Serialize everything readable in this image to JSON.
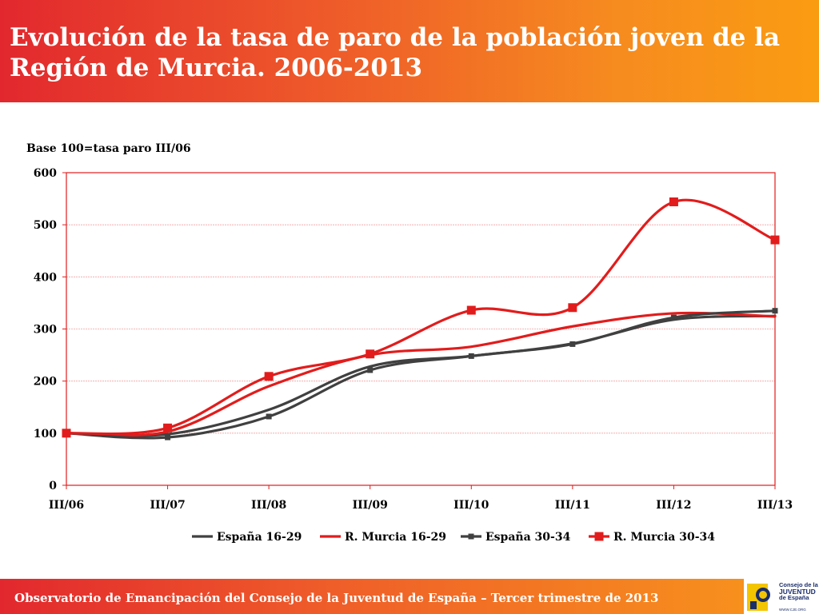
{
  "header": {
    "title": "Evolución de la tasa de paro de la población joven de la Región de Murcia. 2006-2013"
  },
  "footer": {
    "text": "Observatorio de Emancipación del Consejo de la Juventud de España – Tercer trimestre de 2013",
    "logo_line1": "Consejo de la",
    "logo_line2": "JUVENTUD",
    "logo_line3": "de España",
    "logo_url": "WWW.CJE.ORG"
  },
  "colors": {
    "spain": "#404040",
    "murcia": "#e21c1c",
    "grid": "#f2a0a0",
    "frame": "#e21c1c"
  },
  "chart_data": {
    "type": "line",
    "title": "Evolución de la tasa de paro de la población joven de la Región de Murcia. 2006-2013",
    "ylabel": "Base 100=tasa paro III/06",
    "xlabel": "",
    "categories": [
      "III/06",
      "III/07",
      "III/08",
      "III/09",
      "III/10",
      "III/11",
      "III/12",
      "III/13"
    ],
    "ylim": [
      0,
      600
    ],
    "yticks": [
      0,
      100,
      200,
      300,
      400,
      500,
      600
    ],
    "grid": true,
    "legend_position": "bottom",
    "series": [
      {
        "name": "España 16-29",
        "color": "#404040",
        "marker": "none",
        "values": [
          100,
          98,
          145,
          228,
          248,
          272,
          318,
          325
        ]
      },
      {
        "name": "R. Murcia 16-29",
        "color": "#e21c1c",
        "marker": "none",
        "values": [
          100,
          103,
          190,
          250,
          266,
          305,
          330,
          324
        ]
      },
      {
        "name": "España 30-34",
        "color": "#404040",
        "marker": "small-square",
        "values": [
          100,
          92,
          132,
          221,
          248,
          271,
          322,
          335
        ]
      },
      {
        "name": "R. Murcia 30-34",
        "color": "#e21c1c",
        "marker": "square",
        "values": [
          100,
          110,
          209,
          252,
          336,
          341,
          544,
          471
        ]
      }
    ]
  }
}
